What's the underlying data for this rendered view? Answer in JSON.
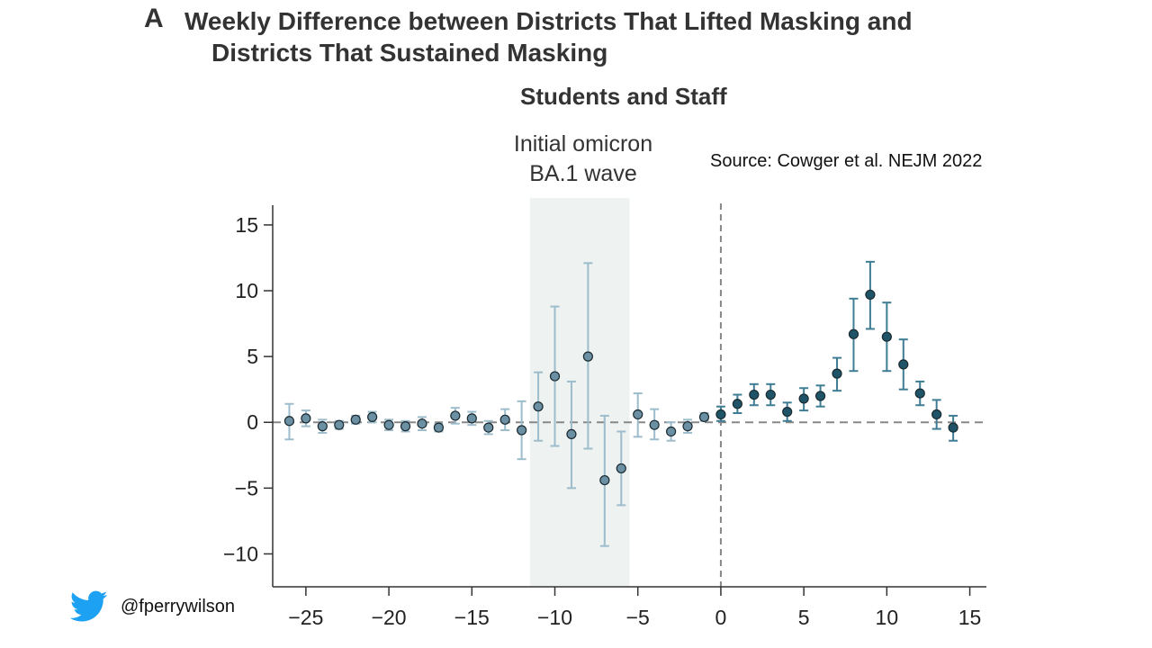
{
  "panel_letter": "A",
  "title_line1": "Weekly Difference between Districts That Lifted Masking and",
  "title_line2": "Districts That Sustained Masking",
  "subtitle": "Students and Staff",
  "wave_label_line1": "Initial omicron",
  "wave_label_line2": "BA.1 wave",
  "source": "Source: Cowger et al. NEJM 2022",
  "twitter_handle": "@fperrywilson",
  "twitter_icon": "twitter-bird-icon",
  "colors": {
    "pre_point": "#6b8fa3",
    "pre_error": "#9dbccc",
    "post_point": "#1f5468",
    "post_error": "#3f7d94",
    "shade": "#eef2f1",
    "axis": "#333333",
    "reference": "#888888",
    "twitter": "#1da1f2"
  },
  "chart_data": {
    "type": "scatter",
    "title": "Students and Staff",
    "xlabel": "",
    "ylabel": "",
    "xlim": [
      -27,
      16
    ],
    "ylim": [
      -12.5,
      16.5
    ],
    "xticks": [
      -25,
      -20,
      -15,
      -10,
      -5,
      0,
      5,
      10,
      15
    ],
    "yticks": [
      15,
      10,
      5,
      0,
      -5,
      -10
    ],
    "xtick_labels": [
      "−25",
      "−20",
      "−15",
      "−10",
      "−5",
      "0",
      "5",
      "10",
      "15"
    ],
    "ytick_labels": [
      "15",
      "10",
      "5",
      "0",
      "−5",
      "−10"
    ],
    "shaded_region": {
      "x": [
        -11.5,
        -5.5
      ],
      "label": "Initial omicron BA.1 wave"
    },
    "reference_lines": {
      "y": 0,
      "x": 0,
      "style": "dashed"
    },
    "series": [
      {
        "x": [
          -26,
          -25,
          -24,
          -23,
          -22,
          -21,
          -20,
          -19,
          -18,
          -17,
          -16,
          -15,
          -14,
          -13,
          -12,
          -11,
          -10,
          -9,
          -8,
          -7,
          -6,
          -5,
          -4,
          -3,
          -2,
          -1
        ],
        "y": [
          0.1,
          0.3,
          -0.3,
          -0.2,
          0.2,
          0.4,
          -0.2,
          -0.3,
          -0.1,
          -0.4,
          0.5,
          0.3,
          -0.4,
          0.2,
          -0.6,
          1.2,
          3.5,
          -0.9,
          5.0,
          -4.4,
          -3.5,
          0.6,
          -0.2,
          -0.7,
          -0.3,
          0.4
        ],
        "low": [
          -1.3,
          -0.3,
          -0.8,
          -0.5,
          -0.1,
          0,
          -0.6,
          -0.7,
          -0.6,
          -0.7,
          -0.1,
          -0.2,
          -0.9,
          -0.6,
          -2.8,
          -1.4,
          -1.8,
          -5.0,
          -2.0,
          -9.4,
          -6.3,
          -1.1,
          -1.3,
          -1.4,
          -0.8,
          0.1
        ],
        "high": [
          1.4,
          0.9,
          0.2,
          0.1,
          0.5,
          0.8,
          0.2,
          0.1,
          0.4,
          -0.1,
          1.1,
          0.8,
          0.1,
          1.0,
          1.6,
          3.8,
          8.8,
          3.1,
          12.1,
          0.5,
          -0.7,
          2.2,
          1.0,
          0,
          0.2,
          0.7
        ]
      },
      {
        "x": [
          0,
          1,
          2,
          3,
          4,
          5,
          6,
          7,
          8,
          9,
          10,
          11,
          12,
          13,
          14
        ],
        "y": [
          0.6,
          1.4,
          2.1,
          2.1,
          0.8,
          1.8,
          2.0,
          3.7,
          6.7,
          9.7,
          6.5,
          4.4,
          2.2,
          0.6,
          -0.4
        ],
        "low": [
          0.1,
          0.7,
          1.3,
          1.3,
          0.1,
          0.9,
          1.2,
          2.4,
          3.9,
          7.1,
          3.9,
          2.5,
          1.3,
          -0.5,
          -1.4
        ],
        "high": [
          1.2,
          2.1,
          2.9,
          2.9,
          1.5,
          2.6,
          2.8,
          4.9,
          9.4,
          12.2,
          9.1,
          6.3,
          3.1,
          1.7,
          0.5
        ]
      }
    ]
  }
}
